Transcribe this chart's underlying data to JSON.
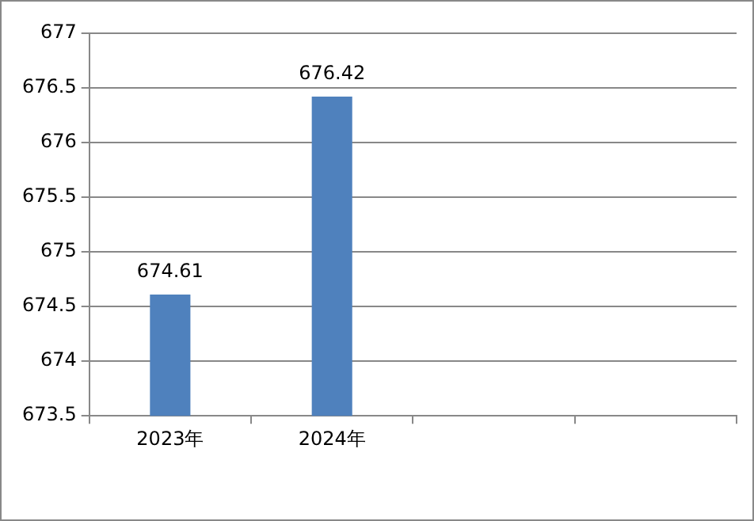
{
  "chart_data": {
    "type": "bar",
    "categories": [
      "2023年",
      "2024年",
      null,
      null
    ],
    "values": [
      674.61,
      676.42,
      null,
      null
    ],
    "color": "#4f81bd",
    "ylim": [
      673.5,
      677
    ],
    "yticks": [
      673.5,
      674,
      674.5,
      675,
      675.5,
      676,
      676.5,
      677
    ],
    "grid": "y",
    "data_labels": true,
    "legend": false
  }
}
